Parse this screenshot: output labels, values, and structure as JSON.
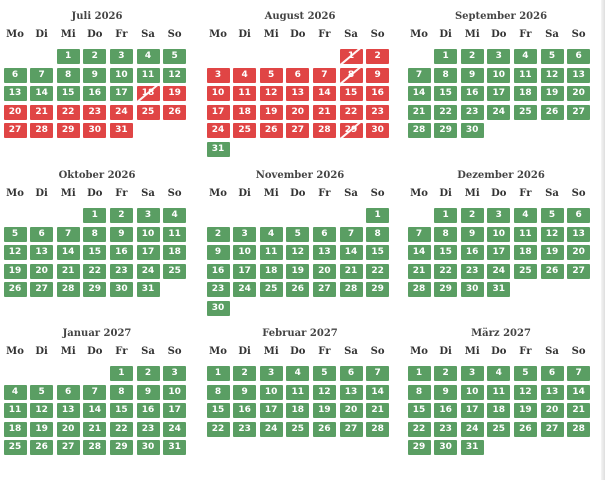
{
  "weekday_labels": [
    "Mo",
    "Di",
    "Mi",
    "Do",
    "Fr",
    "Sa",
    "So"
  ],
  "colors": {
    "available": "#5a9e63",
    "booked": "#e04545",
    "header_text": "#444444"
  },
  "months": [
    {
      "title": "Juli 2026",
      "offset": 2,
      "days": 31,
      "booked": [
        18,
        19,
        20,
        21,
        22,
        23,
        24,
        25,
        26,
        27,
        28,
        29,
        30,
        31
      ],
      "partial": [
        18
      ]
    },
    {
      "title": "August 2026",
      "offset": 5,
      "days": 31,
      "booked": [
        1,
        2,
        3,
        4,
        5,
        6,
        7,
        8,
        9,
        10,
        11,
        12,
        13,
        14,
        15,
        16,
        17,
        18,
        19,
        20,
        21,
        22,
        23,
        24,
        25,
        26,
        27,
        28,
        29,
        30
      ],
      "partial": [
        1,
        8,
        29
      ]
    },
    {
      "title": "September 2026",
      "offset": 1,
      "days": 30,
      "booked": [],
      "partial": []
    },
    {
      "title": "Oktober 2026",
      "offset": 3,
      "days": 31,
      "booked": [],
      "partial": []
    },
    {
      "title": "November 2026",
      "offset": 6,
      "days": 30,
      "booked": [],
      "partial": []
    },
    {
      "title": "Dezember 2026",
      "offset": 1,
      "days": 31,
      "booked": [],
      "partial": []
    },
    {
      "title": "Januar 2027",
      "offset": 4,
      "days": 31,
      "booked": [],
      "partial": []
    },
    {
      "title": "Februar 2027",
      "offset": 0,
      "days": 28,
      "booked": [],
      "partial": []
    },
    {
      "title": "März 2027",
      "offset": 0,
      "days": 31,
      "booked": [],
      "partial": []
    }
  ]
}
